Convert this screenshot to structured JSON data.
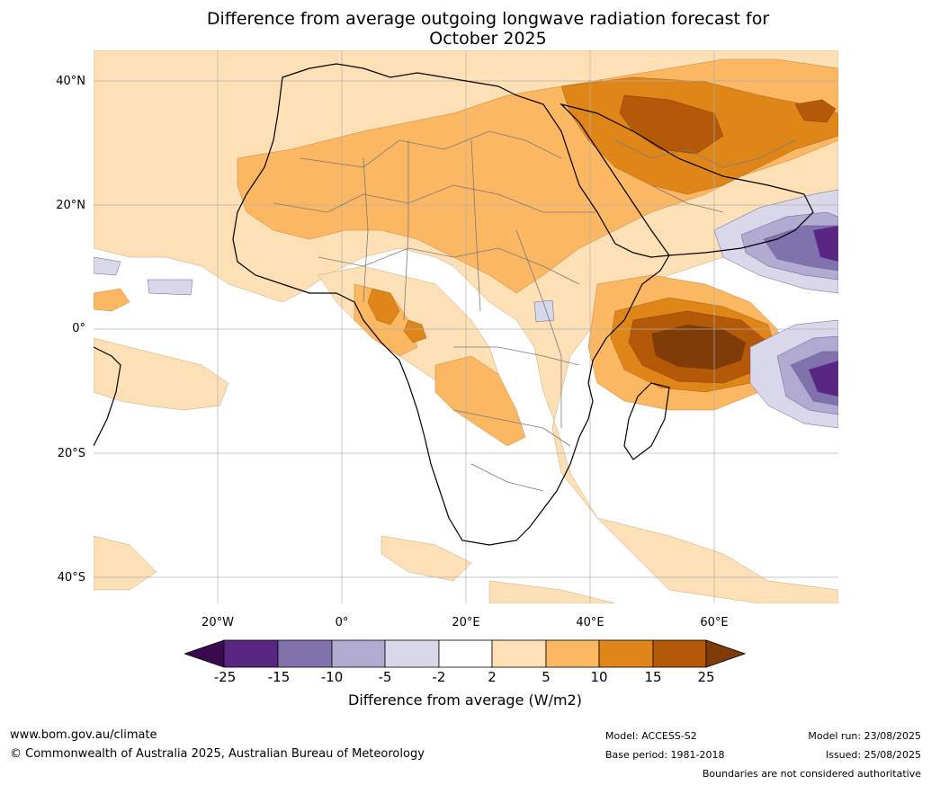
{
  "title_line1": "Difference from average outgoing longwave radiation forecast for",
  "title_line2": "October 2025",
  "lat_labels": [
    "40°N",
    "20°N",
    "0°",
    "20°S",
    "40°S"
  ],
  "lon_labels": [
    "20°W",
    "0°",
    "20°E",
    "40°E",
    "60°E"
  ],
  "colorbar": {
    "label": "Difference from average (W/m2)",
    "ticks": [
      "-25",
      "-15",
      "-10",
      "-5",
      "-2",
      "2",
      "5",
      "10",
      "15",
      "25"
    ],
    "colors": {
      "below_-25": "#3b0a4e",
      "-25_-15": "#5a2683",
      "-15_-10": "#8072ad",
      "-10_-5": "#b1aad1",
      "-5_-2": "#d9d8ea",
      "-2_2": "#ffffff",
      "2_5": "#fee0b6",
      "5_10": "#fbb762",
      "10_15": "#e08618",
      "15_25": "#b35908",
      "above_25": "#7f3b08"
    }
  },
  "footer": {
    "website": "www.bom.gov.au/climate",
    "copyright": "© Commonwealth of Australia 2025, Australian Bureau of Meteorology",
    "model": "Model: ACCESS-S2",
    "base_period": "Base period: 1981-2018",
    "model_run": "Model run: 23/08/2025",
    "issued": "Issued: 25/08/2025",
    "disclaimer": "Boundaries are not considered authoritative"
  }
}
